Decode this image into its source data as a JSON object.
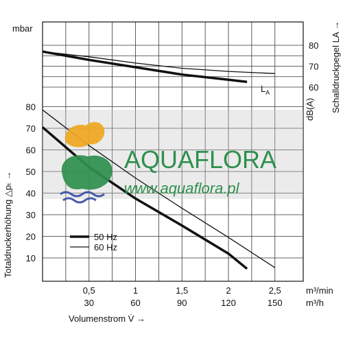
{
  "watermark": {
    "brand": "AQUAFLORA",
    "url": "www.aquaflora.pl",
    "colors": {
      "text": "#2f8f4e",
      "frog_green": "#2f8f4e",
      "frog_orange": "#f0a820",
      "waves": "#3a4fa8",
      "band": "#c6c6c6"
    }
  },
  "axes": {
    "top_unit": "mbar",
    "left_label": "Totaldruckerhöhung △pₜ →",
    "right_label": "Schalldruckpegel LA →",
    "right_unit": "dB(A)",
    "x_label": "Volumenstrom V̇ →",
    "x_unit_1": "m³/min",
    "x_unit_2": "m³/h",
    "curve_label": "L",
    "curve_label_sub": "A"
  },
  "legend": [
    {
      "label": "50 Hz"
    },
    {
      "label": "60 Hz"
    }
  ],
  "chart_data": {
    "type": "line",
    "x_ticks_primary": [
      {
        "value": 0.5,
        "label": "0,5"
      },
      {
        "value": 1,
        "label": "1"
      },
      {
        "value": 1.5,
        "label": "1,5"
      },
      {
        "value": 2,
        "label": "2"
      },
      {
        "value": 2.5,
        "label": "2,5"
      }
    ],
    "x_ticks_secondary": [
      "30",
      "60",
      "90",
      "120",
      "150"
    ],
    "xlim": [
      0,
      2.75
    ],
    "pressure": {
      "ylim": [
        0,
        90
      ],
      "y_ticks": [
        "10",
        "20",
        "30",
        "40",
        "50",
        "60",
        "70",
        "80"
      ],
      "series": [
        {
          "name": "50 Hz",
          "points": [
            [
              0,
              70.5
            ],
            [
              0.5,
              52
            ],
            [
              1,
              37.5
            ],
            [
              1.5,
              25
            ],
            [
              2,
              12
            ],
            [
              2.2,
              5
            ]
          ]
        },
        {
          "name": "60 Hz",
          "points": [
            [
              0,
              78.5
            ],
            [
              0.5,
              62
            ],
            [
              1,
              47
            ],
            [
              1.5,
              33
            ],
            [
              2,
              19.5
            ],
            [
              2.5,
              5.5
            ]
          ]
        }
      ]
    },
    "sound": {
      "ylim": [
        55,
        85
      ],
      "y_ticks": [
        "60",
        "70",
        "80"
      ],
      "series": [
        {
          "name": "50 Hz",
          "points": [
            [
              0,
              77
            ],
            [
              0.5,
              73
            ],
            [
              1,
              69.5
            ],
            [
              1.5,
              66
            ],
            [
              2,
              63.5
            ],
            [
              2.2,
              62.5
            ]
          ]
        },
        {
          "name": "60 Hz",
          "points": [
            [
              0,
              77
            ],
            [
              0.5,
              74.5
            ],
            [
              1,
              71.5
            ],
            [
              1.5,
              69
            ],
            [
              2,
              67.5
            ],
            [
              2.5,
              66.5
            ]
          ]
        }
      ]
    }
  }
}
